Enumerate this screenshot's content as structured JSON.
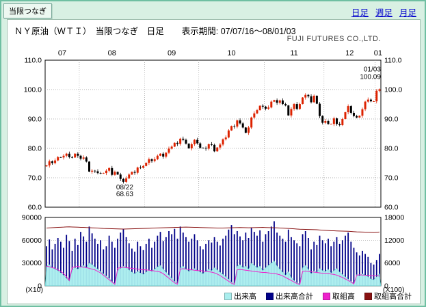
{
  "header": {
    "tab_label": "当限つなぎ",
    "title": "ＮＹ原油（ＷＴＩ）　当限つなぎ　日足",
    "period_label": "表示期間: 07/07/16～08/01/03",
    "company": "FUJI FUTURES CO.,LTD."
  },
  "nav": {
    "daily": "日足",
    "weekly": "週足",
    "monthly": "月足"
  },
  "legend": {
    "items": [
      {
        "label": "出来高",
        "color": "#aaeeee"
      },
      {
        "label": "出来高合計",
        "color": "#000088"
      },
      {
        "label": "取組高",
        "color": "#ee22cc"
      },
      {
        "label": "取組高合計",
        "color": "#881111"
      }
    ]
  },
  "chart_data": {
    "type": "candlestick",
    "title": "ＮＹ原油（ＷＴＩ） 当限つなぎ 日足",
    "period": "07/07/16～08/01/03",
    "price_axis": {
      "min": 60,
      "max": 110,
      "ticks": [
        {
          "value": 110,
          "label": "110.0"
        },
        {
          "value": 100,
          "label": "100.0"
        },
        {
          "value": 90,
          "label": "90.0"
        },
        {
          "value": 80,
          "label": "80.0"
        },
        {
          "value": 70,
          "label": "70.0"
        },
        {
          "value": 60,
          "label": "60.0"
        }
      ]
    },
    "volume_axis": {
      "left_max": 90000,
      "right_max": 18000,
      "left_unit": "(X10)",
      "right_unit": "(X100)",
      "left_ticks": [
        {
          "value": 90000,
          "label": "90000"
        },
        {
          "value": 60000,
          "label": "60000"
        },
        {
          "value": 30000,
          "label": "30000"
        },
        {
          "value": 0,
          "label": "0"
        }
      ],
      "right_ticks": [
        {
          "value": 18000,
          "label": "18000"
        },
        {
          "value": 12000,
          "label": "12000"
        },
        {
          "value": 6000,
          "label": "6000"
        },
        {
          "value": 0,
          "label": "0"
        }
      ]
    },
    "months": [
      {
        "label": "07",
        "start": 0
      },
      {
        "label": "08",
        "start": 12
      },
      {
        "label": "09",
        "start": 35
      },
      {
        "label": "10",
        "start": 54
      },
      {
        "label": "11",
        "start": 77
      },
      {
        "label": "12",
        "start": 98
      },
      {
        "label": "01",
        "start": 116
      }
    ],
    "closes": [
      74.2,
      75.6,
      75.0,
      75.9,
      77.0,
      76.9,
      77.5,
      78.2,
      77.0,
      76.9,
      78.2,
      77.5,
      76.5,
      76.9,
      75.5,
      72.1,
      72.4,
      72.2,
      71.6,
      71.5,
      71.6,
      72.4,
      73.3,
      71.0,
      72.0,
      71.1,
      69.6,
      68.63,
      69.8,
      71.1,
      72.0,
      71.7,
      73.5,
      73.4,
      74.0,
      75.1,
      76.3,
      75.7,
      76.3,
      77.5,
      78.2,
      77.2,
      78.5,
      79.9,
      80.6,
      81.9,
      81.5,
      83.3,
      82.9,
      81.6,
      80.0,
      81.4,
      82.9,
      81.7,
      80.2,
      80.1,
      79.9,
      81.4,
      81.2,
      79.0,
      80.3,
      81.3,
      83.1,
      83.7,
      86.1,
      87.6,
      87.4,
      89.5,
      88.5,
      87.1,
      85.3,
      87.1,
      90.5,
      91.9,
      93.0,
      94.5,
      94.2,
      93.5,
      93.9,
      95.9,
      96.4,
      95.5,
      96.3,
      95.1,
      94.6,
      91.2,
      93.4,
      95.1,
      93.4,
      95.1,
      97.3,
      98.2,
      97.7,
      95.7,
      97.9,
      95.2,
      91.0,
      88.7,
      89.3,
      88.3,
      88.3,
      90.2,
      88.3,
      87.9,
      90.0,
      92.3,
      94.4,
      92.1,
      91.0,
      90.5,
      91.1,
      93.3,
      95.9,
      96.6,
      96.0,
      96.0,
      99.6,
      100.09
    ],
    "volume_front": [
      26000,
      28000,
      24000,
      22000,
      20000,
      17000,
      14000,
      10000,
      6000,
      21000,
      24000,
      22000,
      25000,
      27000,
      24000,
      30000,
      28000,
      25000,
      22000,
      19000,
      16000,
      13000,
      10000,
      6000,
      3000,
      20000,
      23000,
      26000,
      24000,
      21000,
      18000,
      16000,
      19000,
      17000,
      15000,
      18000,
      21000,
      19000,
      22000,
      25000,
      27000,
      22000,
      18000,
      14000,
      10000,
      6000,
      3000,
      24000,
      26000,
      22000,
      19000,
      21000,
      23000,
      20000,
      18000,
      16000,
      19000,
      22000,
      20000,
      24000,
      21000,
      18000,
      15000,
      12000,
      9000,
      5000,
      3000,
      26000,
      28000,
      24000,
      26000,
      22000,
      30000,
      27000,
      24000,
      26000,
      20000,
      24000,
      27000,
      30000,
      33000,
      26000,
      22000,
      18000,
      14000,
      19000,
      11000,
      7000,
      4000,
      2500,
      24000,
      27000,
      22000,
      16000,
      20000,
      18000,
      23000,
      20000,
      19000,
      22000,
      17000,
      20000,
      23000,
      18000,
      15000,
      12000,
      9000,
      6000,
      3000,
      15000,
      13000,
      16000,
      14000,
      12000,
      9000,
      8000,
      12000,
      16000
    ],
    "volume_total": [
      52000,
      61000,
      48000,
      55000,
      63000,
      58000,
      50000,
      67000,
      59000,
      46000,
      62000,
      54000,
      71000,
      65000,
      58000,
      78000,
      69000,
      62000,
      55000,
      60000,
      48000,
      52000,
      66000,
      58000,
      50000,
      62000,
      70000,
      75000,
      64000,
      56000,
      49000,
      45000,
      58000,
      52000,
      47000,
      55000,
      62000,
      50000,
      58000,
      66000,
      71000,
      59000,
      64000,
      72000,
      68000,
      75000,
      62000,
      78000,
      70000,
      64000,
      58000,
      62000,
      68000,
      60000,
      52000,
      48000,
      55000,
      60000,
      57000,
      64000,
      58000,
      53000,
      62000,
      66000,
      74000,
      80000,
      68000,
      72000,
      65000,
      60000,
      70000,
      63000,
      76000,
      71000,
      66000,
      73000,
      58000,
      68000,
      72000,
      78000,
      85000,
      70000,
      66000,
      62000,
      58000,
      74000,
      64000,
      60000,
      56000,
      52000,
      68000,
      72000,
      63000,
      48000,
      58000,
      54000,
      66000,
      60000,
      56000,
      62000,
      52000,
      58000,
      64000,
      55000,
      60000,
      66000,
      70000,
      58000,
      50000,
      44000,
      40000,
      46000,
      42000,
      38000,
      30000,
      28000,
      34000,
      42000
    ],
    "oi_front": [
      26000,
      25000,
      24000,
      23000,
      21000,
      19000,
      16000,
      12000,
      7000,
      24000,
      25000,
      25500,
      25000,
      24500,
      24000,
      23000,
      22000,
      21000,
      19000,
      17000,
      14000,
      11000,
      8000,
      5000,
      2000,
      23000,
      24000,
      24500,
      24000,
      23500,
      23000,
      22500,
      22000,
      21500,
      21000,
      21000,
      20500,
      20000,
      19500,
      19000,
      18000,
      16000,
      13000,
      10000,
      7000,
      4000,
      2000,
      22000,
      22500,
      22000,
      21500,
      21000,
      20500,
      20000,
      20000,
      19500,
      19000,
      18500,
      18000,
      17000,
      15500,
      13500,
      11000,
      8500,
      6000,
      3500,
      1800,
      21000,
      21500,
      21000,
      20500,
      20000,
      19500,
      19000,
      18500,
      18000,
      17500,
      17500,
      17000,
      16500,
      16000,
      15500,
      14500,
      13000,
      11000,
      9000,
      7000,
      5000,
      3000,
      1500,
      19000,
      19500,
      19000,
      18500,
      18000,
      17500,
      17000,
      16500,
      16500,
      16000,
      15500,
      15000,
      14000,
      12500,
      11000,
      9000,
      7000,
      5000,
      2500,
      14000,
      14500,
      14200,
      14000,
      13800,
      13500,
      13200,
      13000,
      12800
    ],
    "oi_total": [
      15200,
      15250,
      15300,
      15350,
      15400,
      15420,
      15450,
      15500,
      15520,
      15480,
      15450,
      15430,
      15400,
      15380,
      15350,
      15300,
      15260,
      15230,
      15200,
      15150,
      15100,
      15080,
      15050,
      15020,
      15000,
      14980,
      14960,
      14950,
      14960,
      14980,
      15000,
      15020,
      15050,
      15080,
      15100,
      15120,
      15150,
      15180,
      15200,
      15230,
      15260,
      15280,
      15300,
      15320,
      15350,
      15380,
      15400,
      15420,
      15440,
      15450,
      15430,
      15420,
      15400,
      15380,
      15350,
      15320,
      15300,
      15280,
      15260,
      15240,
      15220,
      15200,
      15220,
      15240,
      15260,
      15280,
      15300,
      15320,
      15340,
      15320,
      15300,
      15280,
      15300,
      15320,
      15340,
      15360,
      15380,
      15350,
      15320,
      15300,
      15280,
      15250,
      15220,
      15180,
      15150,
      15100,
      15050,
      15000,
      14950,
      14900,
      14880,
      14850,
      14820,
      14800,
      14780,
      14750,
      14700,
      14650,
      14600,
      14550,
      14500,
      14480,
      14450,
      14420,
      14400,
      14380,
      14350,
      14300,
      14250,
      14200,
      14180,
      14150,
      14120,
      14100,
      14080,
      14050,
      14100,
      14150
    ],
    "annotations": [
      {
        "index": 27,
        "price": 68.63,
        "lines": [
          "08/22",
          "68.63"
        ],
        "placement": "below"
      },
      {
        "index": 117,
        "price": 100.09,
        "lines": [
          "01/03",
          "100.09"
        ],
        "placement": "above"
      }
    ],
    "colors": {
      "up": "#dd2200",
      "down": "#000000",
      "volume_front": "#aaeeee",
      "volume_total": "#000088",
      "oi_front": "#ee22cc",
      "oi_total": "#881111",
      "grid": "#999999"
    },
    "series_names": {
      "volume_front": "出来高",
      "volume_total": "出来高合計",
      "oi_front": "取組高",
      "oi_total": "取組高合計"
    }
  }
}
